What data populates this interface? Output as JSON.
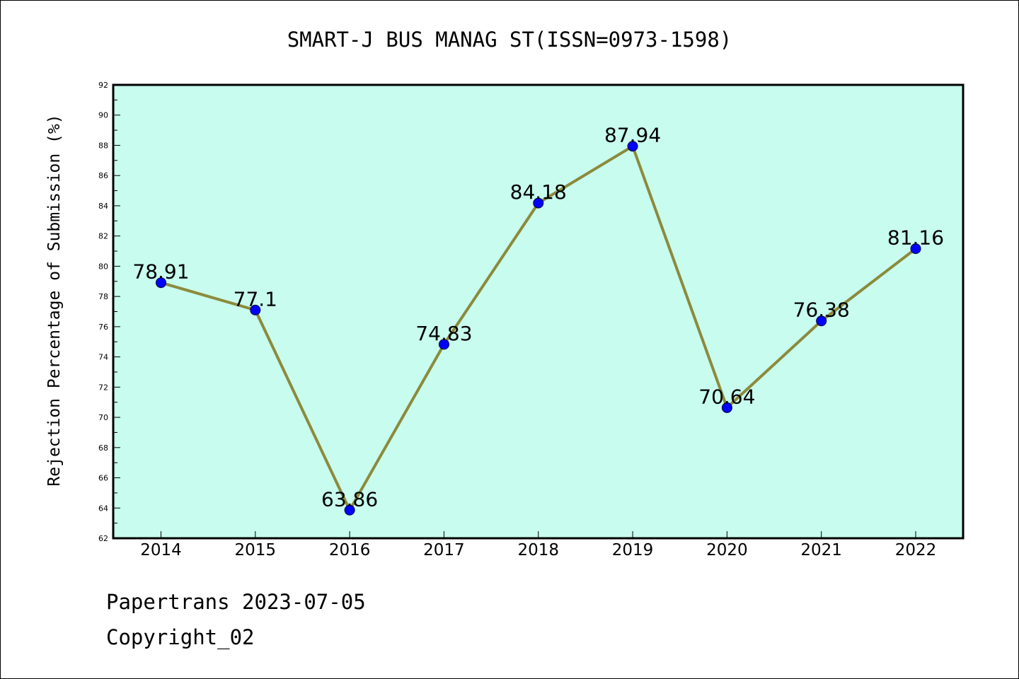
{
  "chart_data": {
    "type": "line",
    "title": "SMART-J BUS MANAG ST(ISSN=0973-1598)",
    "ylabel": "Rejection Percentage of Submission (%)",
    "xlabel": "",
    "categories": [
      "2014",
      "2015",
      "2016",
      "2017",
      "2018",
      "2019",
      "2020",
      "2021",
      "2022"
    ],
    "values": [
      78.91,
      77.1,
      63.86,
      74.83,
      84.18,
      87.94,
      70.64,
      76.38,
      81.16
    ],
    "data_labels": [
      "78.91",
      "77.1",
      "63.86",
      "74.83",
      "84.18",
      "87.94",
      "70.64",
      "76.38",
      "81.16"
    ],
    "ylim": [
      62,
      92
    ],
    "yticks": [
      "62",
      "64",
      "66",
      "68",
      "70",
      "72",
      "74",
      "76",
      "78",
      "80",
      "82",
      "84",
      "86",
      "88",
      "90",
      "92"
    ],
    "grid": false,
    "colors": {
      "plot_background": "#c7fcee",
      "line": "#8c8a3c",
      "marker": "#0000ff"
    }
  },
  "footer": {
    "line1": "Papertrans 2023-07-05",
    "line2": "Copyright_02"
  }
}
